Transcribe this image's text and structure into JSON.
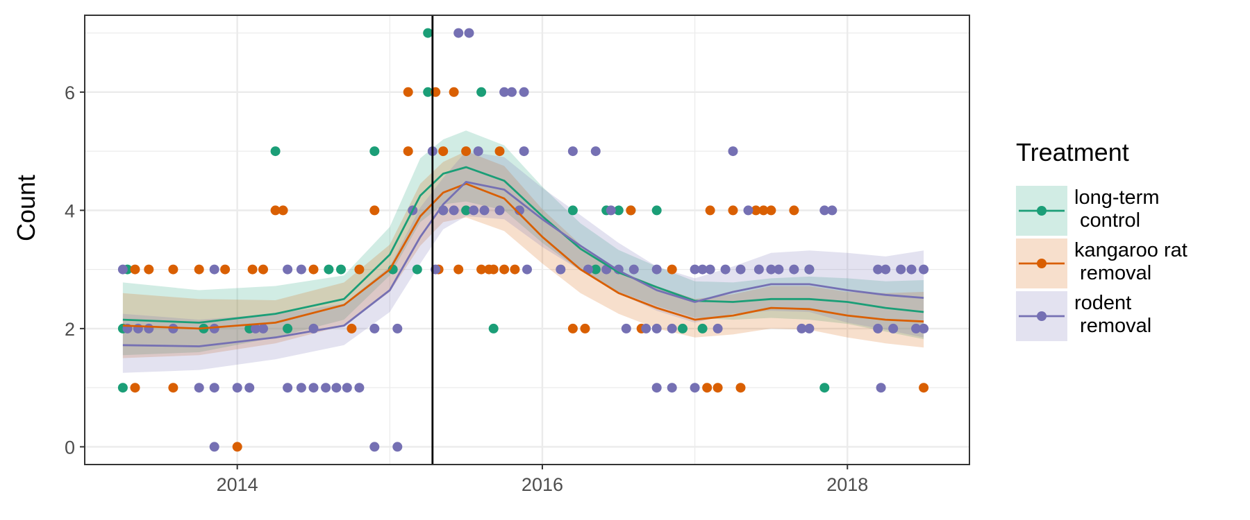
{
  "chart_data": {
    "type": "scatter",
    "title": "",
    "xlabel": "",
    "ylabel": "Count",
    "xlim": [
      2013.0,
      2018.8
    ],
    "ylim": [
      -0.3,
      7.3
    ],
    "x_ticks": [
      2014,
      2016,
      2018
    ],
    "x_tick_labels": [
      "2014",
      "2016",
      "2018"
    ],
    "y_ticks": [
      0,
      2,
      4,
      6
    ],
    "y_tick_labels": [
      "0",
      "2",
      "4",
      "6"
    ],
    "grid": true,
    "vline_x": 2015.28,
    "legend": {
      "title": "Treatment",
      "position": "right",
      "entries": [
        "long-term\n control",
        "kangaroo rat\n removal",
        "rodent\n removal"
      ]
    },
    "series": [
      {
        "name": "long-term\n control",
        "color": "#1b9e77",
        "points": [
          [
            2013.25,
            1
          ],
          [
            2013.25,
            2
          ],
          [
            2013.28,
            3
          ],
          [
            2013.78,
            2
          ],
          [
            2014.08,
            2
          ],
          [
            2014.25,
            5
          ],
          [
            2014.33,
            2
          ],
          [
            2014.6,
            3
          ],
          [
            2014.68,
            3
          ],
          [
            2014.9,
            5
          ],
          [
            2015.02,
            3
          ],
          [
            2015.18,
            3
          ],
          [
            2015.25,
            7
          ],
          [
            2015.25,
            6
          ],
          [
            2015.35,
            4
          ],
          [
            2015.5,
            4
          ],
          [
            2015.6,
            6
          ],
          [
            2015.68,
            2
          ],
          [
            2016.2,
            4
          ],
          [
            2016.35,
            3
          ],
          [
            2016.42,
            4
          ],
          [
            2016.5,
            4
          ],
          [
            2016.58,
            4
          ],
          [
            2016.75,
            4
          ],
          [
            2016.92,
            2
          ],
          [
            2017.05,
            2
          ],
          [
            2017.75,
            3
          ],
          [
            2017.85,
            1
          ]
        ],
        "smooth": [
          [
            2013.25,
            2.15
          ],
          [
            2013.75,
            2.1
          ],
          [
            2014.25,
            2.25
          ],
          [
            2014.7,
            2.5
          ],
          [
            2015.0,
            3.25
          ],
          [
            2015.2,
            4.25
          ],
          [
            2015.35,
            4.62
          ],
          [
            2015.5,
            4.73
          ],
          [
            2015.75,
            4.5
          ],
          [
            2016.0,
            3.9
          ],
          [
            2016.25,
            3.35
          ],
          [
            2016.5,
            2.95
          ],
          [
            2016.75,
            2.7
          ],
          [
            2017.0,
            2.47
          ],
          [
            2017.25,
            2.45
          ],
          [
            2017.5,
            2.5
          ],
          [
            2017.75,
            2.5
          ],
          [
            2018.0,
            2.45
          ],
          [
            2018.25,
            2.35
          ],
          [
            2018.5,
            2.28
          ]
        ],
        "band": [
          [
            2013.25,
            1.55,
            2.78
          ],
          [
            2013.75,
            1.6,
            2.65
          ],
          [
            2014.25,
            1.85,
            2.72
          ],
          [
            2014.7,
            2.15,
            2.9
          ],
          [
            2015.0,
            2.9,
            3.72
          ],
          [
            2015.2,
            3.8,
            4.88
          ],
          [
            2015.35,
            4.1,
            5.2
          ],
          [
            2015.5,
            4.15,
            5.35
          ],
          [
            2015.75,
            4.0,
            5.1
          ],
          [
            2016.0,
            3.45,
            4.4
          ],
          [
            2016.25,
            2.98,
            3.78
          ],
          [
            2016.5,
            2.62,
            3.33
          ],
          [
            2016.75,
            2.38,
            3.05
          ],
          [
            2017.0,
            2.18,
            2.8
          ],
          [
            2017.25,
            2.15,
            2.78
          ],
          [
            2017.5,
            2.18,
            2.85
          ],
          [
            2017.75,
            2.15,
            2.88
          ],
          [
            2018.0,
            2.08,
            2.85
          ],
          [
            2018.25,
            1.95,
            2.8
          ],
          [
            2018.5,
            1.82,
            2.82
          ]
        ]
      },
      {
        "name": "kangaroo rat\n removal",
        "color": "#d95f02",
        "points": [
          [
            2013.33,
            3
          ],
          [
            2013.33,
            1
          ],
          [
            2013.42,
            3
          ],
          [
            2013.58,
            3
          ],
          [
            2013.58,
            1
          ],
          [
            2013.75,
            3
          ],
          [
            2013.92,
            3
          ],
          [
            2014.0,
            0
          ],
          [
            2014.1,
            3
          ],
          [
            2014.17,
            3
          ],
          [
            2014.25,
            4
          ],
          [
            2014.3,
            4
          ],
          [
            2014.5,
            3
          ],
          [
            2014.75,
            2
          ],
          [
            2014.8,
            3
          ],
          [
            2014.9,
            4
          ],
          [
            2015.12,
            6
          ],
          [
            2015.12,
            5
          ],
          [
            2015.3,
            6
          ],
          [
            2015.32,
            3
          ],
          [
            2015.35,
            5
          ],
          [
            2015.42,
            6
          ],
          [
            2015.45,
            3
          ],
          [
            2015.5,
            5
          ],
          [
            2015.6,
            3
          ],
          [
            2015.65,
            3
          ],
          [
            2015.68,
            3
          ],
          [
            2015.72,
            5
          ],
          [
            2015.75,
            3
          ],
          [
            2015.82,
            3
          ],
          [
            2016.2,
            2
          ],
          [
            2016.28,
            2
          ],
          [
            2016.58,
            4
          ],
          [
            2016.65,
            2
          ],
          [
            2016.85,
            3
          ],
          [
            2017.08,
            1
          ],
          [
            2017.1,
            4
          ],
          [
            2017.15,
            1
          ],
          [
            2017.3,
            1
          ],
          [
            2017.25,
            4
          ],
          [
            2017.4,
            4
          ],
          [
            2017.45,
            4
          ],
          [
            2017.5,
            4
          ],
          [
            2017.65,
            4
          ],
          [
            2018.5,
            1
          ]
        ],
        "smooth": [
          [
            2013.25,
            2.05
          ],
          [
            2013.75,
            2.0
          ],
          [
            2014.25,
            2.1
          ],
          [
            2014.7,
            2.4
          ],
          [
            2015.0,
            3.0
          ],
          [
            2015.2,
            3.9
          ],
          [
            2015.35,
            4.3
          ],
          [
            2015.5,
            4.45
          ],
          [
            2015.75,
            4.2
          ],
          [
            2016.0,
            3.55
          ],
          [
            2016.25,
            3.0
          ],
          [
            2016.5,
            2.6
          ],
          [
            2016.75,
            2.35
          ],
          [
            2017.0,
            2.15
          ],
          [
            2017.25,
            2.22
          ],
          [
            2017.5,
            2.35
          ],
          [
            2017.75,
            2.33
          ],
          [
            2018.0,
            2.22
          ],
          [
            2018.25,
            2.15
          ],
          [
            2018.5,
            2.12
          ]
        ],
        "band": [
          [
            2013.25,
            1.5,
            2.6
          ],
          [
            2013.75,
            1.55,
            2.5
          ],
          [
            2014.25,
            1.75,
            2.48
          ],
          [
            2014.7,
            2.05,
            2.78
          ],
          [
            2015.0,
            2.62,
            3.42
          ],
          [
            2015.2,
            3.4,
            4.45
          ],
          [
            2015.35,
            3.8,
            4.82
          ],
          [
            2015.5,
            3.88,
            5.0
          ],
          [
            2015.75,
            3.65,
            4.75
          ],
          [
            2016.0,
            3.1,
            4.02
          ],
          [
            2016.25,
            2.6,
            3.42
          ],
          [
            2016.5,
            2.25,
            2.98
          ],
          [
            2016.75,
            2.0,
            2.72
          ],
          [
            2017.0,
            1.85,
            2.5
          ],
          [
            2017.25,
            1.9,
            2.58
          ],
          [
            2017.5,
            2.0,
            2.72
          ],
          [
            2017.75,
            1.98,
            2.72
          ],
          [
            2018.0,
            1.85,
            2.62
          ],
          [
            2018.25,
            1.75,
            2.6
          ],
          [
            2018.5,
            1.68,
            2.62
          ]
        ]
      },
      {
        "name": "rodent\n removal",
        "color": "#7570b3",
        "points": [
          [
            2013.25,
            3
          ],
          [
            2013.28,
            2
          ],
          [
            2013.35,
            2
          ],
          [
            2013.42,
            2
          ],
          [
            2013.58,
            2
          ],
          [
            2013.75,
            1
          ],
          [
            2013.85,
            3
          ],
          [
            2013.85,
            2
          ],
          [
            2013.85,
            0
          ],
          [
            2013.85,
            1
          ],
          [
            2014.0,
            1
          ],
          [
            2014.08,
            1
          ],
          [
            2014.12,
            2
          ],
          [
            2014.17,
            2
          ],
          [
            2014.33,
            3
          ],
          [
            2014.33,
            1
          ],
          [
            2014.42,
            3
          ],
          [
            2014.42,
            1
          ],
          [
            2014.5,
            2
          ],
          [
            2014.5,
            1
          ],
          [
            2014.58,
            1
          ],
          [
            2014.65,
            1
          ],
          [
            2014.72,
            1
          ],
          [
            2014.8,
            1
          ],
          [
            2014.9,
            2
          ],
          [
            2014.9,
            0
          ],
          [
            2015.05,
            2
          ],
          [
            2015.05,
            0
          ],
          [
            2015.15,
            4
          ],
          [
            2015.28,
            5
          ],
          [
            2015.3,
            3
          ],
          [
            2015.35,
            4
          ],
          [
            2015.42,
            4
          ],
          [
            2015.45,
            7
          ],
          [
            2015.52,
            7
          ],
          [
            2015.55,
            4
          ],
          [
            2015.58,
            5
          ],
          [
            2015.62,
            4
          ],
          [
            2015.72,
            4
          ],
          [
            2015.75,
            6
          ],
          [
            2015.8,
            6
          ],
          [
            2015.85,
            4
          ],
          [
            2015.88,
            6
          ],
          [
            2015.88,
            5
          ],
          [
            2015.9,
            3
          ],
          [
            2016.12,
            3
          ],
          [
            2016.2,
            5
          ],
          [
            2016.3,
            3
          ],
          [
            2016.35,
            5
          ],
          [
            2016.42,
            3
          ],
          [
            2016.45,
            4
          ],
          [
            2016.5,
            3
          ],
          [
            2016.55,
            2
          ],
          [
            2016.6,
            3
          ],
          [
            2016.68,
            2
          ],
          [
            2016.75,
            3
          ],
          [
            2016.75,
            2
          ],
          [
            2016.75,
            1
          ],
          [
            2016.85,
            2
          ],
          [
            2016.85,
            1
          ],
          [
            2017.0,
            3
          ],
          [
            2017.0,
            1
          ],
          [
            2017.05,
            3
          ],
          [
            2017.1,
            3
          ],
          [
            2017.15,
            2
          ],
          [
            2017.2,
            3
          ],
          [
            2017.25,
            5
          ],
          [
            2017.3,
            3
          ],
          [
            2017.35,
            4
          ],
          [
            2017.42,
            3
          ],
          [
            2017.5,
            3
          ],
          [
            2017.55,
            3
          ],
          [
            2017.65,
            3
          ],
          [
            2017.7,
            2
          ],
          [
            2017.75,
            3
          ],
          [
            2017.75,
            2
          ],
          [
            2017.85,
            4
          ],
          [
            2017.9,
            4
          ],
          [
            2018.2,
            3
          ],
          [
            2018.2,
            2
          ],
          [
            2018.22,
            1
          ],
          [
            2018.25,
            3
          ],
          [
            2018.3,
            2
          ],
          [
            2018.35,
            3
          ],
          [
            2018.42,
            3
          ],
          [
            2018.45,
            2
          ],
          [
            2018.5,
            3
          ],
          [
            2018.5,
            2
          ]
        ],
        "smooth": [
          [
            2013.25,
            1.72
          ],
          [
            2013.75,
            1.7
          ],
          [
            2014.25,
            1.85
          ],
          [
            2014.7,
            2.05
          ],
          [
            2015.0,
            2.65
          ],
          [
            2015.2,
            3.55
          ],
          [
            2015.35,
            4.1
          ],
          [
            2015.5,
            4.48
          ],
          [
            2015.75,
            4.35
          ],
          [
            2016.0,
            3.85
          ],
          [
            2016.25,
            3.4
          ],
          [
            2016.5,
            2.98
          ],
          [
            2016.75,
            2.65
          ],
          [
            2017.0,
            2.45
          ],
          [
            2017.25,
            2.62
          ],
          [
            2017.5,
            2.75
          ],
          [
            2017.75,
            2.75
          ],
          [
            2018.0,
            2.65
          ],
          [
            2018.25,
            2.57
          ],
          [
            2018.5,
            2.52
          ]
        ],
        "band": [
          [
            2013.25,
            1.25,
            2.25
          ],
          [
            2013.75,
            1.3,
            2.15
          ],
          [
            2014.25,
            1.48,
            2.25
          ],
          [
            2014.7,
            1.72,
            2.42
          ],
          [
            2015.0,
            2.28,
            3.05
          ],
          [
            2015.2,
            3.1,
            4.05
          ],
          [
            2015.35,
            3.68,
            4.55
          ],
          [
            2015.5,
            3.9,
            5.0
          ],
          [
            2015.75,
            3.85,
            4.9
          ],
          [
            2016.0,
            3.38,
            4.38
          ],
          [
            2016.25,
            2.98,
            3.92
          ],
          [
            2016.5,
            2.6,
            3.45
          ],
          [
            2016.75,
            2.3,
            3.05
          ],
          [
            2017.0,
            2.1,
            2.85
          ],
          [
            2017.25,
            2.25,
            3.05
          ],
          [
            2017.5,
            2.3,
            3.28
          ],
          [
            2017.75,
            2.28,
            3.32
          ],
          [
            2018.0,
            2.1,
            3.28
          ],
          [
            2018.25,
            1.98,
            3.22
          ],
          [
            2018.5,
            1.85,
            3.32
          ]
        ]
      }
    ]
  }
}
